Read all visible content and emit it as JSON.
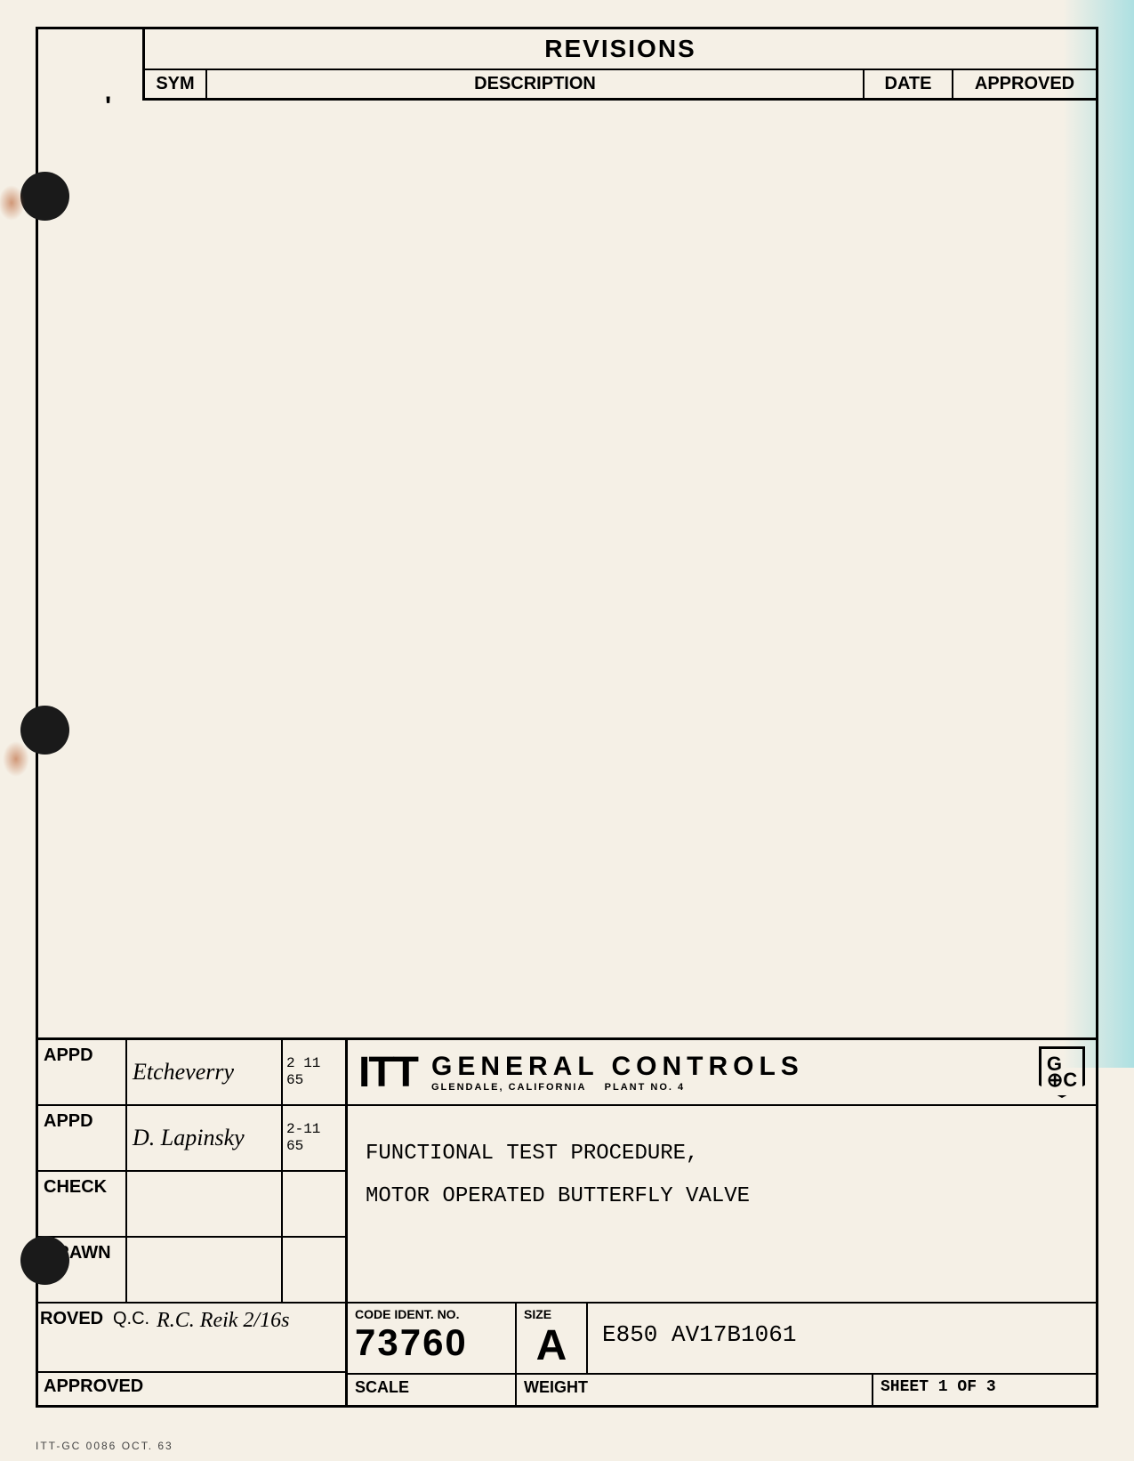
{
  "revisions": {
    "title": "REVISIONS",
    "columns": {
      "sym": "SYM",
      "description": "DESCRIPTION",
      "date": "DATE",
      "approved": "APPROVED"
    }
  },
  "approvals": {
    "appd1": {
      "label": "APPD",
      "signature": "Etcheverry",
      "date": "2 11 65"
    },
    "appd2": {
      "label": "APPD",
      "signature": "D. Lapinsky",
      "date": "2-11 65"
    },
    "check": {
      "label": "CHECK",
      "signature": "",
      "date": ""
    },
    "drawn": {
      "label": "DRAWN",
      "signature": "",
      "date": ""
    },
    "approved_qc": {
      "label_left": "ROVED",
      "label_qc": "Q.C.",
      "signature": "R.C. Reik 2/16s",
      "label_bottom": "APPROVED"
    }
  },
  "company": {
    "logo": "ITT",
    "name": "GENERAL CONTROLS",
    "location": "GLENDALE, CALIFORNIA",
    "plant": "PLANT NO. 4",
    "gc_badge": "G⊕C"
  },
  "document": {
    "title_line1": "FUNCTIONAL TEST PROCEDURE,",
    "title_line2": "MOTOR OPERATED BUTTERFLY VALVE"
  },
  "code_block": {
    "code_ident_label": "CODE IDENT. NO.",
    "code_ident_value": "73760",
    "size_label": "SIZE",
    "size_value": "A",
    "drawing_number": "E850 AV17B1061"
  },
  "scale_row": {
    "scale_label": "SCALE",
    "weight_label": "WEIGHT",
    "sheet_text": "SHEET 1 OF 3"
  },
  "footer": "ITT-GC 0086 OCT. 63"
}
